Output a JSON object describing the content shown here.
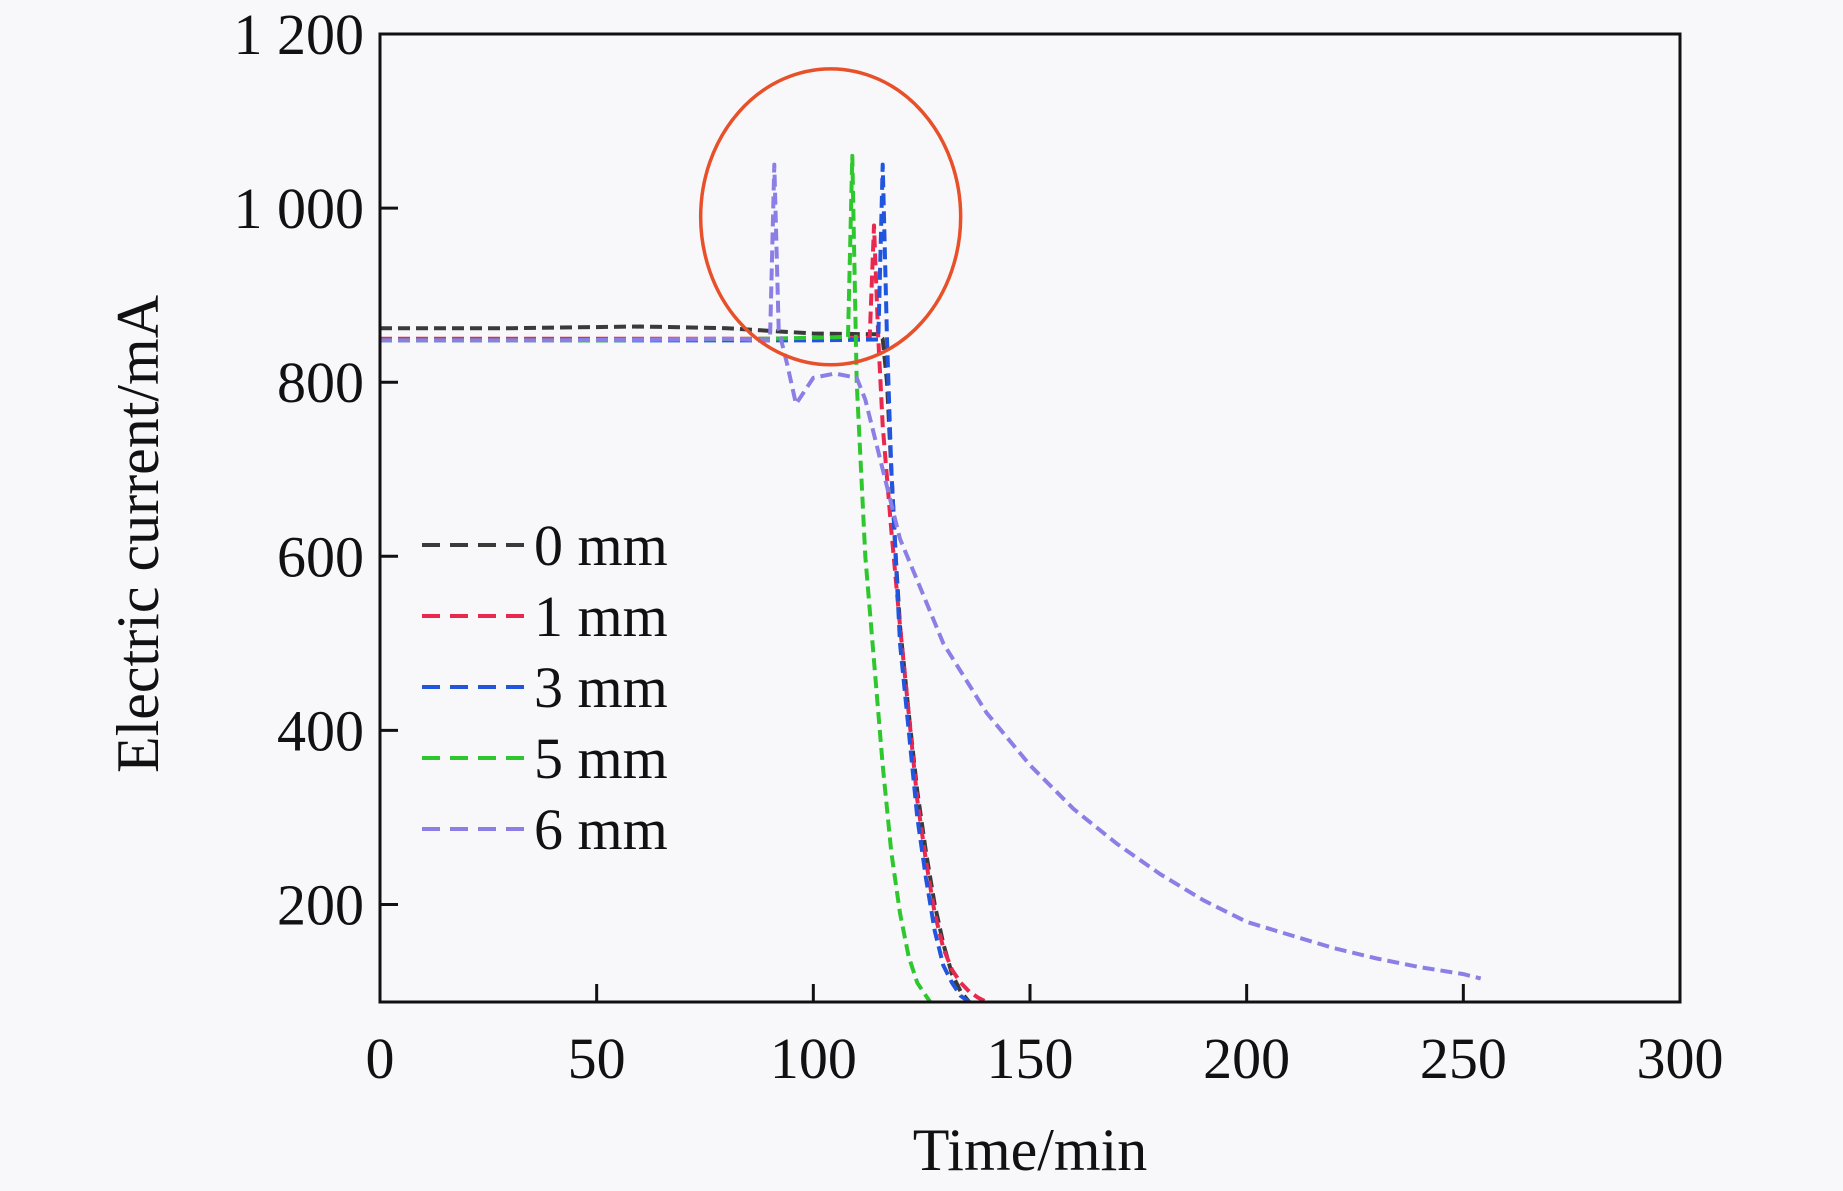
{
  "chart_data": {
    "type": "line",
    "title": "",
    "xlabel": "Time/min",
    "ylabel": "Electric current/mA",
    "xlim": [
      0,
      300
    ],
    "ylim": [
      88,
      1200
    ],
    "xticks": [
      0,
      50,
      100,
      150,
      200,
      250,
      300
    ],
    "xtick_labels": [
      "0",
      "50",
      "100",
      "150",
      "200",
      "250",
      "300"
    ],
    "yticks": [
      200,
      400,
      600,
      800,
      1000,
      1200
    ],
    "ytick_labels": [
      "200",
      "400",
      "600",
      "800",
      "1 000",
      "1 200"
    ],
    "grid": false,
    "legend_position": "left-center",
    "line_style": "dashed",
    "series": [
      {
        "name": "0 mm",
        "color": "#3a3a3a",
        "points": [
          [
            0,
            862
          ],
          [
            30,
            862
          ],
          [
            60,
            864
          ],
          [
            80,
            862
          ],
          [
            100,
            856
          ],
          [
            115,
            855
          ],
          [
            116,
            850
          ],
          [
            117,
            800
          ],
          [
            118,
            700
          ],
          [
            119,
            600
          ],
          [
            120,
            520
          ],
          [
            122,
            420
          ],
          [
            124,
            330
          ],
          [
            126,
            260
          ],
          [
            128,
            200
          ],
          [
            130,
            155
          ],
          [
            132,
            120
          ],
          [
            134,
            100
          ],
          [
            136,
            88
          ]
        ]
      },
      {
        "name": "1 mm",
        "color": "#e8284f",
        "points": [
          [
            0,
            850
          ],
          [
            50,
            850
          ],
          [
            100,
            850
          ],
          [
            113,
            851
          ],
          [
            114,
            980
          ],
          [
            115,
            850
          ],
          [
            116,
            750
          ],
          [
            118,
            630
          ],
          [
            120,
            520
          ],
          [
            122,
            420
          ],
          [
            124,
            320
          ],
          [
            126,
            250
          ],
          [
            128,
            190
          ],
          [
            130,
            150
          ],
          [
            132,
            125
          ],
          [
            134,
            110
          ],
          [
            136,
            100
          ],
          [
            138,
            93
          ],
          [
            140,
            88
          ]
        ]
      },
      {
        "name": "3 mm",
        "color": "#2255dd",
        "points": [
          [
            0,
            848
          ],
          [
            50,
            848
          ],
          [
            100,
            848
          ],
          [
            115,
            849
          ],
          [
            116,
            1050
          ],
          [
            117,
            850
          ],
          [
            118,
            700
          ],
          [
            119,
            600
          ],
          [
            120,
            500
          ],
          [
            122,
            400
          ],
          [
            124,
            300
          ],
          [
            126,
            230
          ],
          [
            128,
            170
          ],
          [
            130,
            130
          ],
          [
            132,
            110
          ],
          [
            134,
            95
          ],
          [
            136,
            88
          ]
        ]
      },
      {
        "name": "5 mm",
        "color": "#2ec72e",
        "points": [
          [
            0,
            848
          ],
          [
            50,
            848
          ],
          [
            90,
            850
          ],
          [
            108,
            852
          ],
          [
            109,
            1060
          ],
          [
            110,
            800
          ],
          [
            111,
            700
          ],
          [
            112,
            600
          ],
          [
            114,
            480
          ],
          [
            116,
            360
          ],
          [
            118,
            260
          ],
          [
            120,
            190
          ],
          [
            122,
            140
          ],
          [
            124,
            110
          ],
          [
            126,
            95
          ],
          [
            127,
            88
          ]
        ]
      },
      {
        "name": "6 mm",
        "color": "#8b7fe6",
        "points": [
          [
            0,
            848
          ],
          [
            40,
            848
          ],
          [
            80,
            850
          ],
          [
            90,
            848
          ],
          [
            91,
            1050
          ],
          [
            92,
            860
          ],
          [
            94,
            820
          ],
          [
            96,
            775
          ],
          [
            98,
            790
          ],
          [
            100,
            805
          ],
          [
            105,
            810
          ],
          [
            110,
            805
          ],
          [
            112,
            780
          ],
          [
            114,
            740
          ],
          [
            117,
            680
          ],
          [
            120,
            620
          ],
          [
            125,
            560
          ],
          [
            130,
            500
          ],
          [
            140,
            420
          ],
          [
            150,
            360
          ],
          [
            160,
            310
          ],
          [
            170,
            270
          ],
          [
            180,
            235
          ],
          [
            190,
            205
          ],
          [
            200,
            180
          ],
          [
            210,
            165
          ],
          [
            220,
            150
          ],
          [
            230,
            138
          ],
          [
            240,
            128
          ],
          [
            250,
            120
          ],
          [
            254,
            115
          ]
        ]
      }
    ],
    "annotations": [
      {
        "type": "ellipse",
        "color": "#e8502a",
        "center": [
          104,
          990
        ],
        "radius_x": 30,
        "radius_y": 170
      }
    ]
  }
}
